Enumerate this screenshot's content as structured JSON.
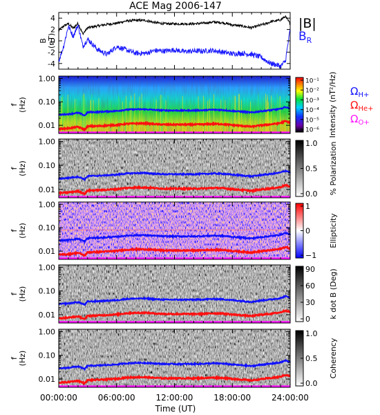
{
  "title": "ACE Mag 2006-147",
  "xlabel": "Time (UT)",
  "x_ticks": [
    "00:00:00",
    "06:00:00",
    "12:00:00",
    "18:00:00",
    "24:00:00"
  ],
  "colors": {
    "bmag": "#000000",
    "br": "#1a1aff",
    "h_plus": "#1010ff",
    "he_plus": "#ff1010",
    "o_plus": "#ff10ff"
  },
  "legend": {
    "bmag": "|B|",
    "br_main": "B",
    "br_sub": "R",
    "omega": "Ω",
    "h_plus": "H+",
    "he_plus": "He+",
    "o_plus": "O+"
  },
  "chart_data": [
    {
      "type": "line",
      "ylabel_top": "B",
      "ylabel_bottom": "(nT)",
      "ylim": [
        -5,
        5
      ],
      "yticks": [
        "4",
        "2",
        "0",
        "-2",
        "-4"
      ],
      "ytick_values": [
        4,
        2,
        0,
        -2,
        -4
      ],
      "x_hours": [
        0,
        0.5,
        1,
        1.5,
        2,
        2.5,
        3,
        4,
        5,
        6,
        7,
        8,
        9,
        10,
        11,
        12,
        13,
        14,
        15,
        16,
        17,
        18,
        19,
        20,
        21,
        21.5,
        22,
        22.5,
        23,
        23.5,
        24
      ],
      "series": [
        {
          "key": "bmag",
          "values": [
            1.8,
            2.6,
            3.0,
            2.2,
            3.1,
            1.2,
            2.3,
            2.6,
            2.9,
            3.1,
            3.5,
            3.6,
            3.6,
            3.2,
            3.0,
            3.0,
            3.0,
            3.0,
            3.1,
            3.3,
            3.2,
            2.8,
            2.6,
            2.3,
            2.8,
            3.0,
            3.4,
            3.5,
            3.7,
            4.3,
            3.0
          ]
        },
        {
          "key": "br",
          "values": [
            -3.6,
            -1.0,
            2.6,
            0.8,
            2.8,
            -1.0,
            0.3,
            -1.5,
            -2.4,
            -1.0,
            -1.6,
            -2.2,
            -2.2,
            -1.7,
            -1.8,
            -1.6,
            -1.9,
            -1.8,
            -1.8,
            -1.7,
            -2.0,
            -2.3,
            -2.2,
            -2.4,
            -2.9,
            -3.5,
            -4.0,
            -4.2,
            -4.5,
            -3.6,
            2.0
          ]
        }
      ]
    },
    {
      "type": "heatmap",
      "ylabel_top": "f",
      "ylabel_bottom": "(Hz)",
      "yticks": [
        "1.00",
        "0.10",
        "0.01"
      ],
      "colorbar_label": "Intensity (nT²/Hz)",
      "colorbar_ticks": [
        "10⁻¹",
        "10⁻²",
        "10⁻³",
        "10⁻⁴",
        "10⁻⁵",
        "10⁻⁶"
      ],
      "colormap": "rainbow"
    },
    {
      "type": "heatmap",
      "ylabel_top": "f",
      "ylabel_bottom": "(Hz)",
      "yticks": [
        "1.00",
        "0.10",
        "0.01"
      ],
      "colorbar_label": "% Polarization",
      "colorbar_ticks": [
        "1.0",
        "0.5",
        "0.0"
      ],
      "colormap": "gray"
    },
    {
      "type": "heatmap",
      "ylabel_top": "f",
      "ylabel_bottom": "(Hz)",
      "yticks": [
        "1.00",
        "0.10",
        "0.01"
      ],
      "colorbar_label": "Ellipticity",
      "colorbar_ticks": [
        "1",
        "0",
        "−1"
      ],
      "colormap": "red-white-blue"
    },
    {
      "type": "heatmap",
      "ylabel_top": "f",
      "ylabel_bottom": "(Hz)",
      "yticks": [
        "1.00",
        "0.10",
        "0.01"
      ],
      "colorbar_label": "k dot B (Deg)",
      "colorbar_ticks": [
        "90",
        "60",
        "30",
        "0"
      ],
      "colormap": "gray"
    },
    {
      "type": "heatmap",
      "ylabel_top": "f",
      "ylabel_bottom": "(Hz)",
      "yticks": [
        "1.00",
        "0.10",
        "0.01"
      ],
      "colorbar_label": "Coherency",
      "colorbar_ticks": [
        "1.0",
        "0.5",
        "0.0"
      ],
      "colormap": "gray"
    }
  ],
  "cyclotron": {
    "x_hours": [
      0,
      1,
      2,
      2.7,
      3,
      4,
      5,
      6,
      7,
      8,
      9,
      10,
      11,
      12,
      13,
      14,
      15,
      16,
      17,
      18,
      19,
      20,
      21,
      22,
      23,
      23.5,
      24
    ],
    "h_plus_hz": [
      0.028,
      0.03,
      0.034,
      0.026,
      0.036,
      0.037,
      0.039,
      0.041,
      0.046,
      0.048,
      0.048,
      0.045,
      0.043,
      0.043,
      0.043,
      0.043,
      0.044,
      0.046,
      0.045,
      0.041,
      0.038,
      0.035,
      0.04,
      0.044,
      0.05,
      0.06,
      0.052
    ]
  }
}
